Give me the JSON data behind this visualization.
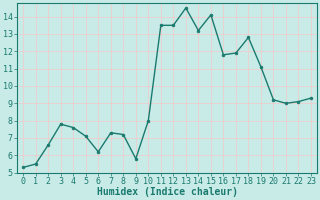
{
  "x": [
    0,
    1,
    2,
    3,
    4,
    5,
    6,
    7,
    8,
    9,
    10,
    11,
    12,
    13,
    14,
    15,
    16,
    17,
    18,
    19,
    20,
    21,
    22,
    23
  ],
  "y": [
    5.3,
    5.5,
    6.6,
    7.8,
    7.6,
    7.1,
    6.2,
    7.3,
    7.2,
    5.8,
    8.0,
    13.5,
    13.5,
    14.5,
    13.2,
    14.1,
    11.8,
    11.9,
    12.8,
    11.1,
    9.2,
    9.0,
    9.1,
    9.3
  ],
  "line_color": "#1a7a6e",
  "marker": "o",
  "markersize": 2.0,
  "linewidth": 1.0,
  "xlabel": "Humidex (Indice chaleur)",
  "xlabel_fontsize": 7,
  "xlabel_fontweight": "bold",
  "ylim": [
    5,
    14.8
  ],
  "xlim": [
    -0.5,
    23.5
  ],
  "yticks": [
    5,
    6,
    7,
    8,
    9,
    10,
    11,
    12,
    13,
    14
  ],
  "xticks": [
    0,
    1,
    2,
    3,
    4,
    5,
    6,
    7,
    8,
    9,
    10,
    11,
    12,
    13,
    14,
    15,
    16,
    17,
    18,
    19,
    20,
    21,
    22,
    23
  ],
  "background_color": "#c8ebe8",
  "grid_color": "#f5c8c8",
  "grid_linewidth": 0.5,
  "tick_fontsize": 6,
  "figwidth": 3.2,
  "figheight": 2.0,
  "dpi": 100
}
